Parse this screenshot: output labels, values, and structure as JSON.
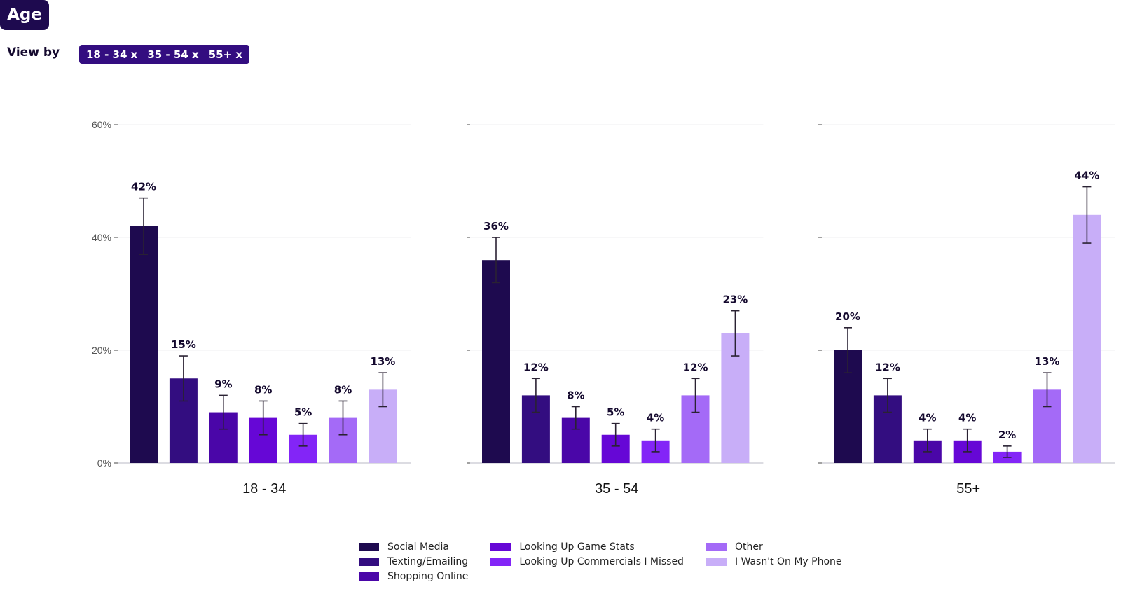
{
  "header": {
    "title": "Age",
    "view_by_label": "View by",
    "chips": [
      "18 - 34 x",
      "35 - 54 x",
      "55+ x"
    ]
  },
  "colors": {
    "title_bg": "#1e0a4f",
    "chips_bg": "#330d80",
    "series": [
      "#1e0a4f",
      "#330d80",
      "#4a06a8",
      "#6607d6",
      "#8325f7",
      "#a46af7",
      "#c8aef8"
    ]
  },
  "chart_data": {
    "type": "bar",
    "title": "Age",
    "xlabel": "",
    "ylabel": "",
    "ylim": [
      0,
      60
    ],
    "yticks": [
      0,
      20,
      40,
      60
    ],
    "ytick_labels": [
      "0%",
      "20%",
      "40%",
      "60%"
    ],
    "grid": true,
    "legend_position": "bottom",
    "series_names": [
      "Social Media",
      "Texting/Emailing",
      "Shopping Online",
      "Looking Up Game Stats",
      "Looking Up Commercials I Missed",
      "Other",
      "I Wasn't On My Phone"
    ],
    "panels": [
      {
        "category": "18 - 34",
        "values": [
          42,
          15,
          9,
          8,
          5,
          8,
          13
        ],
        "labels": [
          "42%",
          "15%",
          "9%",
          "8%",
          "5%",
          "8%",
          "13%"
        ],
        "error_low": [
          37,
          11,
          6,
          5,
          3,
          5,
          10
        ],
        "error_high": [
          47,
          19,
          12,
          11,
          7,
          11,
          16
        ]
      },
      {
        "category": "35 - 54",
        "values": [
          36,
          12,
          8,
          5,
          4,
          12,
          23
        ],
        "labels": [
          "36%",
          "12%",
          "8%",
          "5%",
          "4%",
          "12%",
          "23%"
        ],
        "error_low": [
          32,
          9,
          6,
          3,
          2,
          9,
          19
        ],
        "error_high": [
          40,
          15,
          10,
          7,
          6,
          15,
          27
        ]
      },
      {
        "category": "55+",
        "values": [
          20,
          12,
          4,
          4,
          2,
          13,
          44
        ],
        "labels": [
          "20%",
          "12%",
          "4%",
          "4%",
          "2%",
          "13%",
          "44%"
        ],
        "error_low": [
          16,
          9,
          2,
          2,
          1,
          10,
          39
        ],
        "error_high": [
          24,
          15,
          6,
          6,
          3,
          16,
          49
        ]
      }
    ]
  }
}
